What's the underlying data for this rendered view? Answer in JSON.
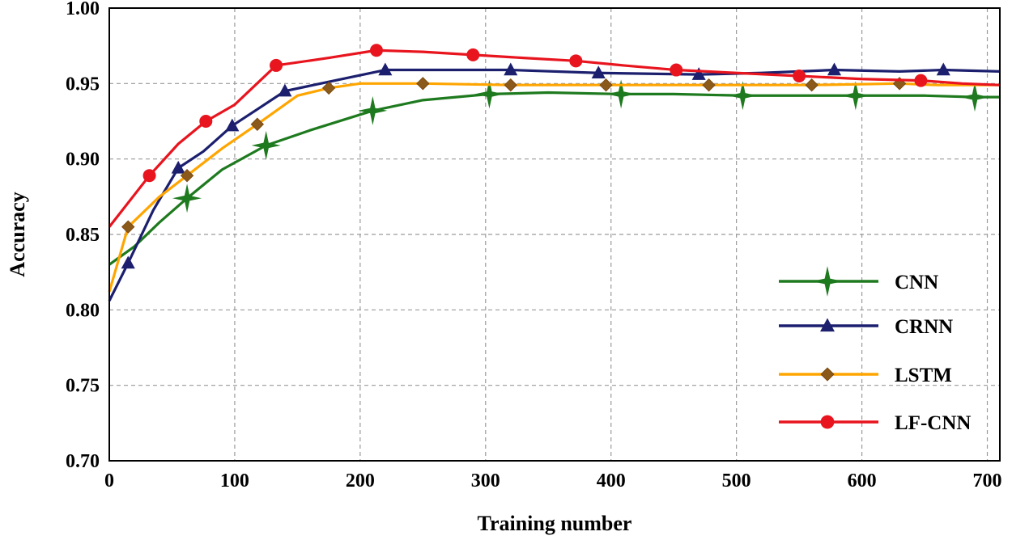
{
  "chart_data": {
    "type": "line",
    "title": "",
    "xlabel": "Training number",
    "ylabel": "Accuracy",
    "xlim": [
      0,
      710
    ],
    "ylim": [
      0.7,
      1.0
    ],
    "xticks": [
      0,
      100,
      200,
      300,
      400,
      500,
      600,
      700
    ],
    "xtick_labels": [
      "0",
      "100",
      "200",
      "300",
      "400",
      "500",
      "600",
      "700"
    ],
    "yticks": [
      0.7,
      0.75,
      0.8,
      0.85,
      0.9,
      0.95,
      1.0
    ],
    "ytick_labels": [
      "0.70",
      "0.75",
      "0.80",
      "0.85",
      "0.90",
      "0.95",
      "1.00"
    ],
    "grid": true,
    "legend_position": "bottom-right",
    "series": [
      {
        "name": "CNN",
        "color": "#1e7a1e",
        "marker": "star4",
        "line_x": [
          0,
          20,
          40,
          62,
          90,
          125,
          160,
          210,
          250,
          303,
          350,
          408,
          450,
          505,
          550,
          595,
          650,
          690,
          710
        ],
        "line_y": [
          0.83,
          0.842,
          0.858,
          0.874,
          0.893,
          0.909,
          0.919,
          0.932,
          0.939,
          0.943,
          0.944,
          0.943,
          0.943,
          0.942,
          0.942,
          0.942,
          0.942,
          0.941,
          0.941
        ],
        "marker_x": [
          62,
          125,
          210,
          303,
          408,
          505,
          595,
          690
        ],
        "marker_y": [
          0.874,
          0.909,
          0.932,
          0.943,
          0.943,
          0.942,
          0.942,
          0.941
        ]
      },
      {
        "name": "CRNN",
        "color": "#1b1f6e",
        "marker": "triangle",
        "line_x": [
          0,
          15,
          35,
          55,
          75,
          98,
          120,
          140,
          180,
          220,
          260,
          320,
          390,
          470,
          520,
          578,
          630,
          665,
          710
        ],
        "line_y": [
          0.806,
          0.831,
          0.866,
          0.894,
          0.905,
          0.922,
          0.934,
          0.945,
          0.952,
          0.959,
          0.959,
          0.959,
          0.957,
          0.956,
          0.957,
          0.959,
          0.958,
          0.959,
          0.958
        ],
        "marker_x": [
          15,
          55,
          98,
          140,
          220,
          320,
          390,
          470,
          578,
          665
        ],
        "marker_y": [
          0.831,
          0.894,
          0.922,
          0.945,
          0.959,
          0.959,
          0.957,
          0.956,
          0.959,
          0.959
        ]
      },
      {
        "name": "LSTM",
        "color": "#ffa500",
        "marker": "diamond",
        "line_x": [
          0,
          15,
          40,
          62,
          90,
          118,
          150,
          175,
          200,
          250,
          320,
          396,
          478,
          560,
          630,
          660,
          710
        ],
        "line_y": [
          0.812,
          0.855,
          0.875,
          0.889,
          0.907,
          0.923,
          0.942,
          0.947,
          0.95,
          0.95,
          0.949,
          0.949,
          0.949,
          0.949,
          0.95,
          0.949,
          0.949
        ],
        "marker_x": [
          15,
          62,
          118,
          175,
          250,
          320,
          396,
          478,
          560,
          630
        ],
        "marker_y": [
          0.855,
          0.889,
          0.923,
          0.947,
          0.95,
          0.949,
          0.949,
          0.949,
          0.949,
          0.95
        ]
      },
      {
        "name": "LF-CNN",
        "color": "#e8141e",
        "marker": "circle",
        "line_x": [
          0,
          32,
          55,
          77,
          100,
          133,
          175,
          213,
          250,
          290,
          330,
          372,
          410,
          452,
          500,
          550,
          600,
          647,
          680,
          710
        ],
        "line_y": [
          0.855,
          0.889,
          0.91,
          0.925,
          0.936,
          0.962,
          0.967,
          0.972,
          0.971,
          0.969,
          0.967,
          0.965,
          0.962,
          0.959,
          0.957,
          0.955,
          0.953,
          0.952,
          0.95,
          0.949
        ],
        "marker_x": [
          32,
          77,
          133,
          213,
          290,
          372,
          452,
          550,
          647
        ],
        "marker_y": [
          0.889,
          0.925,
          0.962,
          0.972,
          0.969,
          0.965,
          0.959,
          0.955,
          0.952
        ]
      }
    ]
  }
}
